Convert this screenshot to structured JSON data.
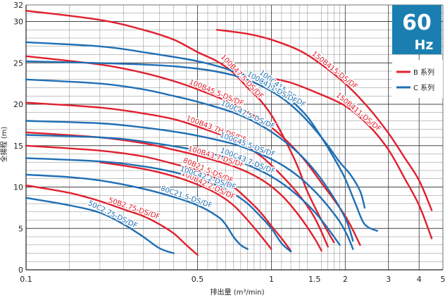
{
  "chart_data": {
    "type": "line",
    "badge": {
      "number": "60",
      "unit": "Hz",
      "color": "#1a7fb0"
    },
    "xlabel": "排出量 (m³/min)",
    "ylabel": "全揚程 (m)",
    "x_scale": "log",
    "xlim": [
      0.1,
      5
    ],
    "ylim": [
      0,
      32
    ],
    "x_ticks": [
      {
        "v": 0.1,
        "label": "0.1"
      },
      {
        "v": 0.5,
        "label": "0.5"
      },
      {
        "v": 1,
        "label": "1"
      },
      {
        "v": 1.5,
        "label": "1.5"
      },
      {
        "v": 2,
        "label": "2"
      },
      {
        "v": 3,
        "label": "3"
      },
      {
        "v": 4,
        "label": "4"
      },
      {
        "v": 5,
        "label": "5"
      }
    ],
    "y_ticks": [
      {
        "v": 0,
        "label": "0"
      },
      {
        "v": 5,
        "label": "5"
      },
      {
        "v": 10,
        "label": "10"
      },
      {
        "v": 15,
        "label": "15"
      },
      {
        "v": 20,
        "label": "20"
      },
      {
        "v": 25,
        "label": "25"
      },
      {
        "v": 30,
        "label": "30"
      },
      {
        "v": 32,
        "label": "32"
      }
    ],
    "grid": true,
    "legend": {
      "placement": "top-right",
      "entries": [
        {
          "label": "B 系列",
          "color": "#e0202e"
        },
        {
          "label": "C 系列",
          "color": "#1f6fb4"
        }
      ]
    },
    "colors": {
      "B": "#e0202e",
      "C": "#1f6fb4"
    },
    "series": [
      {
        "name": "100B47.5-DS/DF",
        "group": "B",
        "points": [
          [
            0.1,
            31.3
          ],
          [
            0.2,
            30.2
          ],
          [
            0.3,
            29
          ],
          [
            0.4,
            27.8
          ],
          [
            0.5,
            26.3
          ],
          [
            0.6,
            25.2
          ],
          [
            0.7,
            23.8
          ],
          [
            0.8,
            22
          ],
          [
            0.9,
            20.5
          ],
          [
            1.0,
            18.7
          ],
          [
            1.1,
            16.5
          ],
          [
            1.2,
            14.3
          ],
          [
            1.3,
            12
          ],
          [
            1.4,
            9.5
          ],
          [
            1.6,
            6
          ],
          [
            1.8,
            3.3
          ]
        ]
      },
      {
        "name": "150B415-DS/DF",
        "group": "B",
        "points": [
          [
            0.6,
            29
          ],
          [
            0.8,
            28.5
          ],
          [
            1.0,
            27.8
          ],
          [
            1.3,
            26.5
          ],
          [
            1.6,
            24.8
          ],
          [
            2.0,
            22.5
          ],
          [
            2.5,
            19.5
          ],
          [
            3.0,
            16.5
          ],
          [
            3.5,
            13.5
          ],
          [
            4.0,
            10.8
          ],
          [
            4.5,
            7.2
          ]
        ]
      },
      {
        "name": "150B411-DS/DF",
        "group": "B",
        "points": [
          [
            0.95,
            23.3
          ],
          [
            1.2,
            22.6
          ],
          [
            1.5,
            21.5
          ],
          [
            2.0,
            19.8
          ],
          [
            2.5,
            17.4
          ],
          [
            3.0,
            14.5
          ],
          [
            3.5,
            11
          ],
          [
            4.0,
            7.8
          ],
          [
            4.5,
            3.8
          ]
        ]
      },
      {
        "name": "100B45.5-DS/DF",
        "group": "B",
        "points": [
          [
            0.1,
            25.8
          ],
          [
            0.2,
            24.8
          ],
          [
            0.3,
            23.8
          ],
          [
            0.4,
            22.8
          ],
          [
            0.5,
            21.8
          ],
          [
            0.7,
            20
          ],
          [
            1.0,
            17.2
          ],
          [
            1.3,
            14
          ],
          [
            1.6,
            10.5
          ],
          [
            2.0,
            6.5
          ],
          [
            2.3,
            3
          ]
        ]
      },
      {
        "name": "100B43.7H-DS/DF",
        "group": "B",
        "points": [
          [
            0.1,
            20.2
          ],
          [
            0.2,
            19.6
          ],
          [
            0.3,
            18.9
          ],
          [
            0.4,
            18.2
          ],
          [
            0.5,
            17.3
          ],
          [
            0.7,
            15.7
          ],
          [
            0.9,
            13.8
          ],
          [
            1.1,
            11.4
          ],
          [
            1.3,
            9
          ],
          [
            1.5,
            6.3
          ],
          [
            1.7,
            2.8
          ]
        ]
      },
      {
        "name": "100B43.7-DS/DF",
        "group": "B",
        "points": [
          [
            0.1,
            16.6
          ],
          [
            0.2,
            16
          ],
          [
            0.3,
            15.3
          ],
          [
            0.4,
            14.5
          ],
          [
            0.5,
            13.8
          ],
          [
            0.7,
            12.5
          ],
          [
            0.9,
            11
          ],
          [
            1.1,
            9
          ],
          [
            1.3,
            6.5
          ],
          [
            1.5,
            3.8
          ],
          [
            1.6,
            2.3
          ]
        ]
      },
      {
        "name": "80B21.5-DS/DF",
        "group": "B",
        "points": [
          [
            0.1,
            15
          ],
          [
            0.2,
            14.4
          ],
          [
            0.3,
            13.7
          ],
          [
            0.4,
            12.8
          ],
          [
            0.5,
            12
          ],
          [
            0.6,
            11
          ],
          [
            0.7,
            10
          ],
          [
            0.8,
            8.5
          ],
          [
            0.9,
            7
          ],
          [
            1.0,
            5.3
          ],
          [
            1.1,
            3.8
          ],
          [
            1.2,
            2.3
          ]
        ]
      },
      {
        "name": "100B42.2-DS/DF",
        "group": "B",
        "points": [
          [
            0.2,
            13
          ],
          [
            0.3,
            12.2
          ],
          [
            0.4,
            11.3
          ],
          [
            0.5,
            10.3
          ],
          [
            0.6,
            9.2
          ],
          [
            0.7,
            7.8
          ],
          [
            0.8,
            6
          ],
          [
            0.9,
            4.2
          ],
          [
            1.0,
            2.5
          ]
        ]
      },
      {
        "name": "50B2.75-DS/DF",
        "group": "B",
        "points": [
          [
            0.1,
            10.2
          ],
          [
            0.15,
            9.3
          ],
          [
            0.2,
            8.3
          ],
          [
            0.25,
            7.3
          ],
          [
            0.3,
            6.5
          ],
          [
            0.35,
            5.5
          ],
          [
            0.4,
            4.4
          ],
          [
            0.45,
            3
          ],
          [
            0.5,
            1.8
          ]
        ]
      },
      {
        "name": "100C415-DS/DF",
        "group": "C",
        "points": [
          [
            0.1,
            27.5
          ],
          [
            0.2,
            27
          ],
          [
            0.3,
            26.3
          ],
          [
            0.5,
            25.2
          ],
          [
            0.7,
            24
          ],
          [
            1.0,
            22.3
          ],
          [
            1.2,
            20.5
          ],
          [
            1.4,
            18.5
          ],
          [
            1.6,
            16
          ],
          [
            1.8,
            13.5
          ],
          [
            2.0,
            11
          ],
          [
            2.2,
            8
          ],
          [
            2.4,
            5.5
          ],
          [
            2.7,
            4.7
          ]
        ]
      },
      {
        "name": "100C411-DS/DF",
        "group": "C",
        "points": [
          [
            0.1,
            25.2
          ],
          [
            0.3,
            24.8
          ],
          [
            0.5,
            24.3
          ],
          [
            0.7,
            23.5
          ],
          [
            0.9,
            22.3
          ],
          [
            1.1,
            20.8
          ],
          [
            1.3,
            19
          ],
          [
            1.5,
            17
          ],
          [
            1.7,
            15
          ],
          [
            1.9,
            13
          ],
          [
            2.1,
            11.5
          ],
          [
            2.3,
            9.5
          ],
          [
            2.4,
            7.5
          ]
        ]
      },
      {
        "name": "100C47.5-DS/DF",
        "group": "C",
        "points": [
          [
            0.1,
            23
          ],
          [
            0.2,
            22.5
          ],
          [
            0.3,
            21.8
          ],
          [
            0.4,
            21
          ],
          [
            0.5,
            20.3
          ],
          [
            0.7,
            19
          ],
          [
            0.9,
            17.5
          ],
          [
            1.1,
            15.8
          ],
          [
            1.3,
            14
          ],
          [
            1.5,
            12
          ],
          [
            1.7,
            9.8
          ],
          [
            1.9,
            7.5
          ],
          [
            2.05,
            5.5
          ],
          [
            2.15,
            3.5
          ]
        ]
      },
      {
        "name": "100C45.5-DS/DF",
        "group": "C",
        "points": [
          [
            0.1,
            18
          ],
          [
            0.2,
            17.7
          ],
          [
            0.3,
            17.2
          ],
          [
            0.4,
            16.7
          ],
          [
            0.5,
            16.2
          ],
          [
            0.7,
            15.2
          ],
          [
            0.9,
            14
          ],
          [
            1.1,
            12.7
          ],
          [
            1.3,
            11.2
          ],
          [
            1.5,
            9.5
          ],
          [
            1.7,
            7.7
          ],
          [
            1.9,
            5.8
          ],
          [
            2.05,
            4
          ],
          [
            2.15,
            2.5
          ]
        ]
      },
      {
        "name": "100C43.7-DS/DF",
        "group": "C",
        "points": [
          [
            0.1,
            16.3
          ],
          [
            0.2,
            16
          ],
          [
            0.3,
            15.5
          ],
          [
            0.5,
            14.4
          ],
          [
            0.7,
            13.3
          ],
          [
            0.9,
            12
          ],
          [
            1.1,
            10.5
          ],
          [
            1.3,
            8.8
          ],
          [
            1.5,
            7
          ],
          [
            1.7,
            5
          ],
          [
            1.9,
            3
          ]
        ]
      },
      {
        "name": "100C42.2-DS/DF",
        "group": "C",
        "points": [
          [
            0.1,
            13.5
          ],
          [
            0.2,
            13.1
          ],
          [
            0.3,
            12.5
          ],
          [
            0.4,
            11.8
          ],
          [
            0.5,
            11
          ],
          [
            0.6,
            10.2
          ],
          [
            0.7,
            9.2
          ],
          [
            0.8,
            8
          ],
          [
            0.9,
            6.5
          ],
          [
            1.0,
            5
          ],
          [
            1.1,
            3.2
          ],
          [
            1.2,
            2.2
          ]
        ]
      },
      {
        "name": "80C21.5-DS/DF",
        "group": "C",
        "points": [
          [
            0.1,
            11.5
          ],
          [
            0.15,
            11.2
          ],
          [
            0.2,
            10.8
          ],
          [
            0.3,
            9.8
          ],
          [
            0.4,
            8.8
          ],
          [
            0.5,
            7.8
          ],
          [
            0.6,
            6.5
          ],
          [
            0.65,
            5.5
          ],
          [
            0.7,
            4
          ],
          [
            0.75,
            3
          ],
          [
            0.8,
            2.5
          ]
        ]
      },
      {
        "name": "50C2.75-DS/DF",
        "group": "C",
        "points": [
          [
            0.1,
            8.7
          ],
          [
            0.15,
            7.8
          ],
          [
            0.2,
            6.9
          ],
          [
            0.25,
            5.5
          ],
          [
            0.3,
            4
          ],
          [
            0.35,
            2.6
          ],
          [
            0.4,
            2
          ]
        ]
      }
    ]
  }
}
